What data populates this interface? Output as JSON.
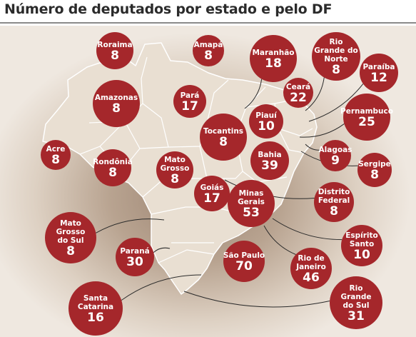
{
  "title": "Número de deputados por estado e pelo DF",
  "colors": {
    "bubble": "#a5272b",
    "land": "#e9dfd2",
    "border": "#ffffff",
    "leader": "#2a2a2a",
    "title": "#2b2b2b"
  },
  "states": [
    {
      "id": "roraima",
      "name_lines": [
        "Roraima"
      ],
      "value": 8
    },
    {
      "id": "amapa",
      "name_lines": [
        "Amapá"
      ],
      "value": 8
    },
    {
      "id": "maranhao",
      "name_lines": [
        "Maranhão"
      ],
      "value": 18
    },
    {
      "id": "rio-grande-do-norte",
      "name_lines": [
        "Rio",
        "Grande do",
        "Norte"
      ],
      "value": 8
    },
    {
      "id": "paraiba",
      "name_lines": [
        "Paraíba"
      ],
      "value": 12
    },
    {
      "id": "amazonas",
      "name_lines": [
        "Amazonas"
      ],
      "value": 8
    },
    {
      "id": "para",
      "name_lines": [
        "Pará"
      ],
      "value": 17
    },
    {
      "id": "ceara",
      "name_lines": [
        "Ceará"
      ],
      "value": 22
    },
    {
      "id": "pernambuco",
      "name_lines": [
        "Pernambuco"
      ],
      "value": 25
    },
    {
      "id": "piaui",
      "name_lines": [
        "Piauí"
      ],
      "value": 10
    },
    {
      "id": "tocantins",
      "name_lines": [
        "Tocantins"
      ],
      "value": 8
    },
    {
      "id": "acre",
      "name_lines": [
        "Acre"
      ],
      "value": 8
    },
    {
      "id": "rondonia",
      "name_lines": [
        "Rondônia"
      ],
      "value": 8
    },
    {
      "id": "mato-grosso",
      "name_lines": [
        "Mato",
        "Grosso"
      ],
      "value": 8
    },
    {
      "id": "bahia",
      "name_lines": [
        "Bahia"
      ],
      "value": 39
    },
    {
      "id": "alagoas",
      "name_lines": [
        "Alagoas"
      ],
      "value": 9
    },
    {
      "id": "sergipe",
      "name_lines": [
        "Sergipe"
      ],
      "value": 8
    },
    {
      "id": "goias",
      "name_lines": [
        "Goiás"
      ],
      "value": 17
    },
    {
      "id": "minas-gerais",
      "name_lines": [
        "Minas",
        "Gerais"
      ],
      "value": 53
    },
    {
      "id": "distrito-federal",
      "name_lines": [
        "Distrito",
        "Federal"
      ],
      "value": 8
    },
    {
      "id": "mato-grosso-do-sul",
      "name_lines": [
        "Mato",
        "Grosso",
        "do Sul"
      ],
      "value": 8
    },
    {
      "id": "parana",
      "name_lines": [
        "Paraná"
      ],
      "value": 30
    },
    {
      "id": "sao-paulo",
      "name_lines": [
        "São Paulo"
      ],
      "value": 70
    },
    {
      "id": "espirito-santo",
      "name_lines": [
        "Espírito",
        "Santo"
      ],
      "value": 10
    },
    {
      "id": "rio-de-janeiro",
      "name_lines": [
        "Rio de",
        "Janeiro"
      ],
      "value": 46
    },
    {
      "id": "santa-catarina",
      "name_lines": [
        "Santa",
        "Catarina"
      ],
      "value": 16
    },
    {
      "id": "rio-grande-do-sul",
      "name_lines": [
        "Rio",
        "Grande",
        "do Sul"
      ],
      "value": 31
    }
  ]
}
